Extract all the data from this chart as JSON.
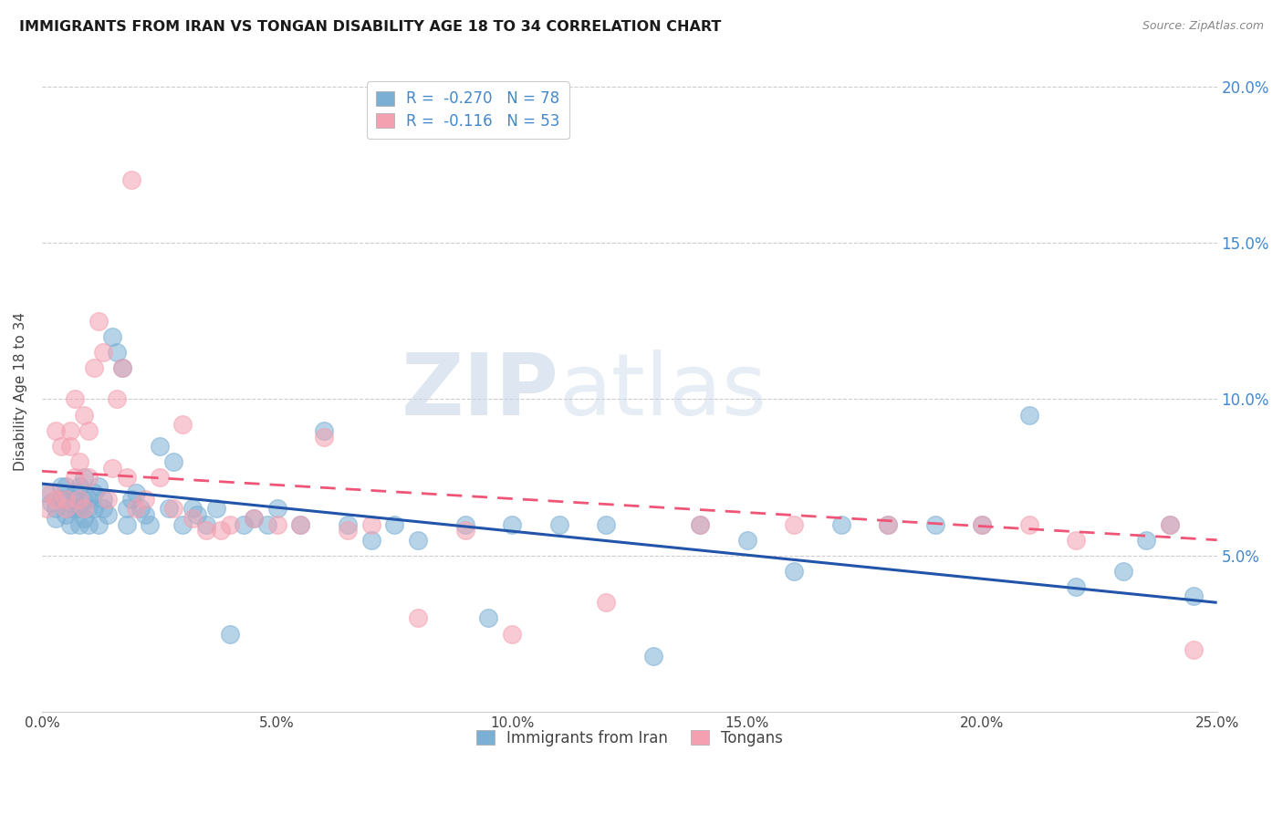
{
  "title": "IMMIGRANTS FROM IRAN VS TONGAN DISABILITY AGE 18 TO 34 CORRELATION CHART",
  "source": "Source: ZipAtlas.com",
  "ylabel": "Disability Age 18 to 34",
  "legend_label_iran": "Immigrants from Iran",
  "legend_label_tongan": "Tongans",
  "iran_R": -0.27,
  "iran_N": 78,
  "tongan_R": -0.116,
  "tongan_N": 53,
  "xlim": [
    0.0,
    0.25
  ],
  "ylim": [
    0.0,
    0.205
  ],
  "xticks": [
    0.0,
    0.05,
    0.1,
    0.15,
    0.2,
    0.25
  ],
  "xtick_labels": [
    "0.0%",
    "5.0%",
    "10.0%",
    "15.0%",
    "20.0%",
    "25.0%"
  ],
  "yticks": [
    0.05,
    0.1,
    0.15,
    0.2
  ],
  "ytick_labels": [
    "5.0%",
    "10.0%",
    "15.0%",
    "20.0%"
  ],
  "color_iran": "#7BAFD4",
  "color_tongan": "#F4A0B0",
  "color_iran_line": "#2255AA",
  "color_tongan_line": "#EE5577",
  "color_right_axis": "#4488CC",
  "iran_scatter_x": [
    0.001,
    0.002,
    0.003,
    0.003,
    0.004,
    0.004,
    0.005,
    0.005,
    0.005,
    0.006,
    0.006,
    0.007,
    0.007,
    0.007,
    0.008,
    0.008,
    0.008,
    0.009,
    0.009,
    0.009,
    0.01,
    0.01,
    0.01,
    0.011,
    0.011,
    0.012,
    0.012,
    0.013,
    0.013,
    0.014,
    0.015,
    0.016,
    0.017,
    0.018,
    0.018,
    0.019,
    0.02,
    0.021,
    0.022,
    0.023,
    0.025,
    0.027,
    0.028,
    0.03,
    0.032,
    0.033,
    0.035,
    0.037,
    0.04,
    0.043,
    0.045,
    0.048,
    0.05,
    0.055,
    0.06,
    0.065,
    0.07,
    0.075,
    0.08,
    0.09,
    0.095,
    0.1,
    0.11,
    0.12,
    0.13,
    0.14,
    0.15,
    0.16,
    0.17,
    0.18,
    0.19,
    0.2,
    0.21,
    0.22,
    0.23,
    0.235,
    0.24,
    0.245
  ],
  "iran_scatter_y": [
    0.07,
    0.067,
    0.065,
    0.062,
    0.068,
    0.072,
    0.063,
    0.068,
    0.072,
    0.065,
    0.06,
    0.065,
    0.07,
    0.068,
    0.065,
    0.06,
    0.072,
    0.062,
    0.068,
    0.075,
    0.065,
    0.06,
    0.068,
    0.07,
    0.065,
    0.06,
    0.072,
    0.065,
    0.068,
    0.063,
    0.12,
    0.115,
    0.11,
    0.065,
    0.06,
    0.068,
    0.07,
    0.065,
    0.063,
    0.06,
    0.085,
    0.065,
    0.08,
    0.06,
    0.065,
    0.063,
    0.06,
    0.065,
    0.025,
    0.06,
    0.062,
    0.06,
    0.065,
    0.06,
    0.09,
    0.06,
    0.055,
    0.06,
    0.055,
    0.06,
    0.03,
    0.06,
    0.06,
    0.06,
    0.018,
    0.06,
    0.055,
    0.045,
    0.06,
    0.06,
    0.06,
    0.06,
    0.095,
    0.04,
    0.045,
    0.055,
    0.06,
    0.037
  ],
  "tongan_scatter_x": [
    0.001,
    0.002,
    0.003,
    0.003,
    0.004,
    0.005,
    0.005,
    0.006,
    0.006,
    0.007,
    0.007,
    0.008,
    0.008,
    0.009,
    0.009,
    0.01,
    0.01,
    0.011,
    0.012,
    0.013,
    0.014,
    0.015,
    0.016,
    0.017,
    0.018,
    0.019,
    0.02,
    0.022,
    0.025,
    0.028,
    0.03,
    0.032,
    0.035,
    0.038,
    0.04,
    0.045,
    0.05,
    0.055,
    0.06,
    0.065,
    0.07,
    0.08,
    0.09,
    0.1,
    0.12,
    0.14,
    0.16,
    0.18,
    0.2,
    0.21,
    0.22,
    0.24,
    0.245
  ],
  "tongan_scatter_y": [
    0.065,
    0.07,
    0.068,
    0.09,
    0.085,
    0.068,
    0.065,
    0.09,
    0.085,
    0.1,
    0.075,
    0.068,
    0.08,
    0.095,
    0.065,
    0.075,
    0.09,
    0.11,
    0.125,
    0.115,
    0.068,
    0.078,
    0.1,
    0.11,
    0.075,
    0.17,
    0.065,
    0.068,
    0.075,
    0.065,
    0.092,
    0.062,
    0.058,
    0.058,
    0.06,
    0.062,
    0.06,
    0.06,
    0.088,
    0.058,
    0.06,
    0.03,
    0.058,
    0.025,
    0.035,
    0.06,
    0.06,
    0.06,
    0.06,
    0.06,
    0.055,
    0.06,
    0.02
  ],
  "watermark_zip": "ZIP",
  "watermark_atlas": "atlas",
  "background_color": "#FFFFFF",
  "grid_color": "#CCCCCC"
}
